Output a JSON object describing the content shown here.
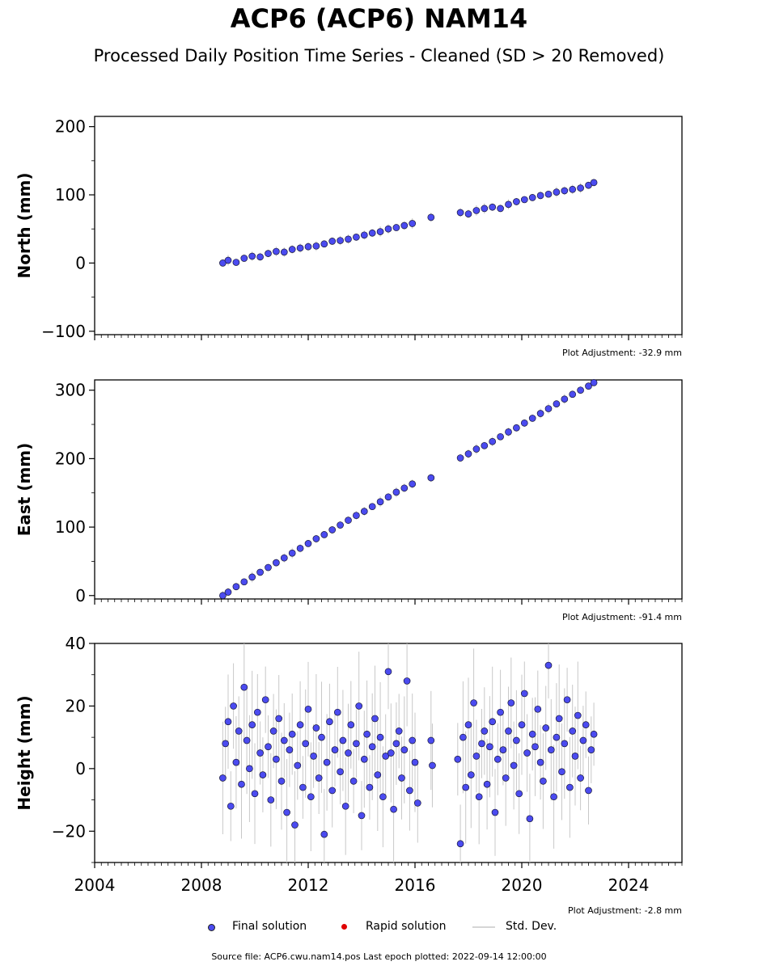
{
  "title": "ACP6 (ACP6) NAM14",
  "subtitle": "Processed Daily Position Time Series - Cleaned (SD > 20 Removed)",
  "footer": "Source file: ACP6.cwu.nam14.pos  Last epoch plotted: 2022-09-14 12:00:00",
  "legend": {
    "final": "Final solution",
    "rapid": "Rapid solution",
    "std": "Std. Dev."
  },
  "colors": {
    "final": "#4b4bf0",
    "rapid": "#e00000",
    "std": "#c8c8c8"
  },
  "chart_data": [
    {
      "type": "scatter",
      "panel": "north",
      "ylabel": "North (mm)",
      "xlim": [
        2004,
        2026
      ],
      "ylim": [
        -105,
        215
      ],
      "yticks": [
        -100,
        0,
        100,
        200
      ],
      "adjustment": "Plot Adjustment: -32.9 mm",
      "series": [
        {
          "x": [
            2008.8,
            2009.0,
            2009.3,
            2009.6,
            2009.9,
            2010.2,
            2010.5,
            2010.8,
            2011.1,
            2011.4,
            2011.7,
            2012.0,
            2012.3,
            2012.6,
            2012.9,
            2013.2,
            2013.5,
            2013.8,
            2014.1,
            2014.4,
            2014.7,
            2015.0,
            2015.3,
            2015.6,
            2015.9,
            2016.6,
            2017.7,
            2018.0,
            2018.3,
            2018.6,
            2018.9,
            2019.2,
            2019.5,
            2019.8,
            2020.1,
            2020.4,
            2020.7,
            2021.0,
            2021.3,
            2021.6,
            2021.9,
            2022.2,
            2022.5,
            2022.7
          ],
          "y": [
            0,
            4,
            1,
            7,
            10,
            9,
            14,
            17,
            16,
            20,
            22,
            24,
            25,
            28,
            32,
            33,
            35,
            38,
            41,
            44,
            46,
            50,
            52,
            55,
            58,
            67,
            74,
            72,
            77,
            80,
            82,
            80,
            86,
            90,
            93,
            96,
            99,
            101,
            104,
            106,
            108,
            110,
            114,
            118
          ]
        }
      ]
    },
    {
      "type": "scatter",
      "panel": "east",
      "ylabel": "East (mm)",
      "xlim": [
        2004,
        2026
      ],
      "ylim": [
        -5,
        315
      ],
      "yticks": [
        0,
        100,
        200,
        300
      ],
      "adjustment": "Plot Adjustment: -91.4 mm",
      "series": [
        {
          "x": [
            2008.8,
            2009.0,
            2009.3,
            2009.6,
            2009.9,
            2010.2,
            2010.5,
            2010.8,
            2011.1,
            2011.4,
            2011.7,
            2012.0,
            2012.3,
            2012.6,
            2012.9,
            2013.2,
            2013.5,
            2013.8,
            2014.1,
            2014.4,
            2014.7,
            2015.0,
            2015.3,
            2015.6,
            2015.9,
            2016.6,
            2017.7,
            2018.0,
            2018.3,
            2018.6,
            2018.9,
            2019.2,
            2019.5,
            2019.8,
            2020.1,
            2020.4,
            2020.7,
            2021.0,
            2021.3,
            2021.6,
            2021.9,
            2022.2,
            2022.5,
            2022.7
          ],
          "y": [
            0,
            5,
            13,
            20,
            27,
            34,
            41,
            48,
            55,
            62,
            69,
            76,
            83,
            89,
            96,
            103,
            110,
            117,
            123,
            130,
            137,
            144,
            151,
            157,
            163,
            172,
            201,
            207,
            214,
            219,
            225,
            232,
            239,
            245,
            252,
            259,
            266,
            273,
            280,
            287,
            294,
            300,
            306,
            311
          ]
        }
      ]
    },
    {
      "type": "scatter",
      "panel": "height",
      "ylabel": "Height (mm)",
      "xlabel": "",
      "xlim": [
        2004,
        2026
      ],
      "ylim": [
        -30,
        40
      ],
      "yticks": [
        -20,
        0,
        20,
        40
      ],
      "xticks": [
        "2004",
        "2008",
        "2012",
        "2016",
        "2020",
        "2024"
      ],
      "adjustment": "Plot Adjustment: -2.8 mm",
      "range_note": "points scattered roughly between -26 and 36 mm, gaps 2016.2-2016.5 and 2016.8-2017.6",
      "series": [
        {
          "x": [
            2008.8,
            2008.9,
            2009.0,
            2009.1,
            2009.2,
            2009.3,
            2009.4,
            2009.5,
            2009.6,
            2009.7,
            2009.8,
            2009.9,
            2010.0,
            2010.1,
            2010.2,
            2010.3,
            2010.4,
            2010.5,
            2010.6,
            2010.7,
            2010.8,
            2010.9,
            2011.0,
            2011.1,
            2011.2,
            2011.3,
            2011.4,
            2011.5,
            2011.6,
            2011.7,
            2011.8,
            2011.9,
            2012.0,
            2012.1,
            2012.2,
            2012.3,
            2012.4,
            2012.5,
            2012.6,
            2012.7,
            2012.8,
            2012.9,
            2013.0,
            2013.1,
            2013.2,
            2013.3,
            2013.4,
            2013.5,
            2013.6,
            2013.7,
            2013.8,
            2013.9,
            2014.0,
            2014.1,
            2014.2,
            2014.3,
            2014.4,
            2014.5,
            2014.6,
            2014.7,
            2014.8,
            2014.9,
            2015.0,
            2015.1,
            2015.2,
            2015.3,
            2015.4,
            2015.5,
            2015.6,
            2015.7,
            2015.8,
            2015.9,
            2016.0,
            2016.1,
            2016.6,
            2016.65,
            2017.6,
            2017.7,
            2017.8,
            2017.9,
            2018.0,
            2018.1,
            2018.2,
            2018.3,
            2018.4,
            2018.5,
            2018.6,
            2018.7,
            2018.8,
            2018.9,
            2019.0,
            2019.1,
            2019.2,
            2019.3,
            2019.4,
            2019.5,
            2019.6,
            2019.7,
            2019.8,
            2019.9,
            2020.0,
            2020.1,
            2020.2,
            2020.3,
            2020.4,
            2020.5,
            2020.6,
            2020.7,
            2020.8,
            2020.9,
            2021.0,
            2021.1,
            2021.2,
            2021.3,
            2021.4,
            2021.5,
            2021.6,
            2021.7,
            2021.8,
            2021.9,
            2022.0,
            2022.1,
            2022.2,
            2022.3,
            2022.4,
            2022.5,
            2022.6,
            2022.7
          ],
          "y": [
            -3,
            8,
            15,
            -12,
            20,
            2,
            12,
            -5,
            26,
            9,
            0,
            14,
            -8,
            18,
            5,
            -2,
            22,
            7,
            -10,
            12,
            3,
            16,
            -4,
            9,
            -14,
            6,
            11,
            -18,
            1,
            14,
            -6,
            8,
            19,
            -9,
            4,
            13,
            -3,
            10,
            -21,
            2,
            15,
            -7,
            6,
            18,
            -1,
            9,
            -12,
            5,
            14,
            -4,
            8,
            20,
            -15,
            3,
            11,
            -6,
            7,
            16,
            -2,
            10,
            -9,
            4,
            31,
            5,
            -13,
            8,
            12,
            -3,
            6,
            28,
            -7,
            9,
            2,
            -11,
            9,
            1,
            3,
            -24,
            10,
            -6,
            14,
            -2,
            21,
            4,
            -9,
            8,
            12,
            -5,
            7,
            15,
            -14,
            3,
            18,
            6,
            -3,
            12,
            21,
            1,
            9,
            -8,
            14,
            24,
            5,
            -16,
            11,
            7,
            19,
            2,
            -4,
            13,
            33,
            6,
            -9,
            10,
            16,
            -1,
            8,
            22,
            -6,
            12,
            4,
            17,
            -3,
            9,
            14,
            -7,
            6,
            11
          ]
        }
      ]
    }
  ]
}
